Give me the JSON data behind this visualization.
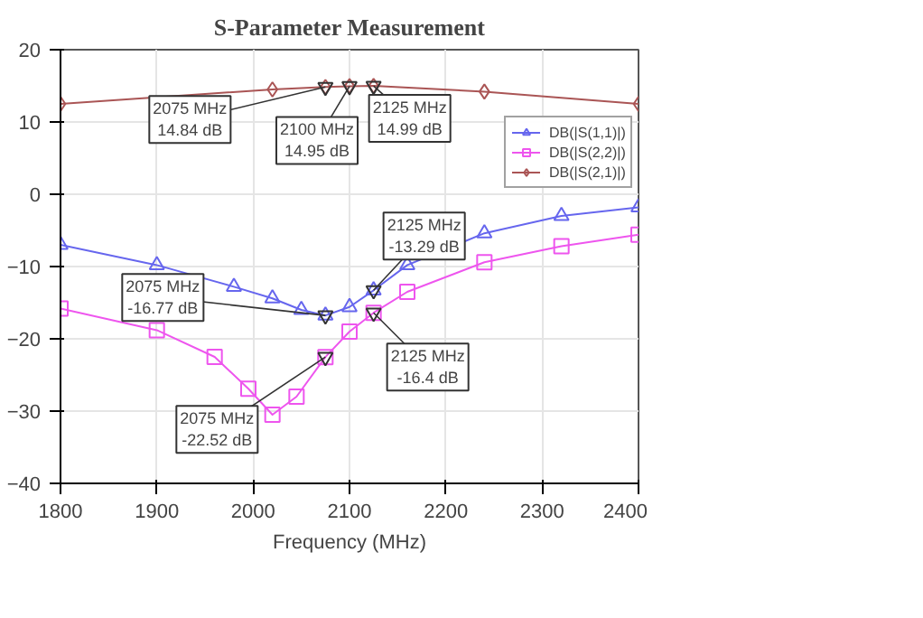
{
  "chart_data": {
    "type": "line",
    "title": "S-Parameter Measurement",
    "xlabel": "Frequency (MHz)",
    "xlim": [
      1800,
      2400
    ],
    "xticks": [
      1800,
      1900,
      2000,
      2100,
      2200,
      2300,
      2400
    ],
    "ylim": [
      -40,
      20
    ],
    "yticks": [
      -40,
      -30,
      -20,
      -10,
      0,
      10,
      20
    ],
    "grid": true,
    "legend": "right",
    "series": [
      {
        "name": "DB(|S(1,1)|)",
        "color": "#6666ee",
        "marker": "triangle",
        "x": [
          1800,
          1900,
          1980,
          2020,
          2050,
          2075,
          2100,
          2125,
          2160,
          2240,
          2320,
          2400
        ],
        "values": [
          -7.0,
          -9.8,
          -12.8,
          -14.4,
          -16.0,
          -16.77,
          -15.6,
          -13.29,
          -9.8,
          -5.4,
          -3.0,
          -1.8
        ]
      },
      {
        "name": "DB(|S(2,2)|)",
        "color": "#ee55ee",
        "marker": "square",
        "x": [
          1800,
          1900,
          1960,
          1995,
          2020,
          2045,
          2075,
          2100,
          2125,
          2160,
          2240,
          2320,
          2400
        ],
        "values": [
          -15.8,
          -18.8,
          -22.5,
          -26.9,
          -30.5,
          -28.0,
          -22.52,
          -19.0,
          -16.4,
          -13.5,
          -9.4,
          -7.2,
          -5.6
        ]
      },
      {
        "name": "DB(|S(2,1)|)",
        "color": "#aa5555",
        "marker": "diamond",
        "x": [
          1800,
          2020,
          2075,
          2100,
          2125,
          2240,
          2400
        ],
        "values": [
          12.5,
          14.5,
          14.84,
          14.95,
          14.99,
          14.2,
          12.5
        ]
      }
    ],
    "annotations": [
      {
        "text": "2075 MHz\n14.84 dB",
        "x": 2075,
        "y": 14.84
      },
      {
        "text": "2100 MHz\n14.95 dB",
        "x": 2100,
        "y": 14.95
      },
      {
        "text": "2125 MHz\n14.99 dB",
        "x": 2125,
        "y": 14.99
      },
      {
        "text": "2075 MHz\n-16.77 dB",
        "x": 2075,
        "y": -16.77
      },
      {
        "text": "2125 MHz\n-13.29 dB",
        "x": 2125,
        "y": -13.29
      },
      {
        "text": "2075 MHz\n-22.52 dB",
        "x": 2075,
        "y": -22.52
      },
      {
        "text": "2125 MHz\n-16.4 dB",
        "x": 2125,
        "y": -16.4
      }
    ]
  }
}
